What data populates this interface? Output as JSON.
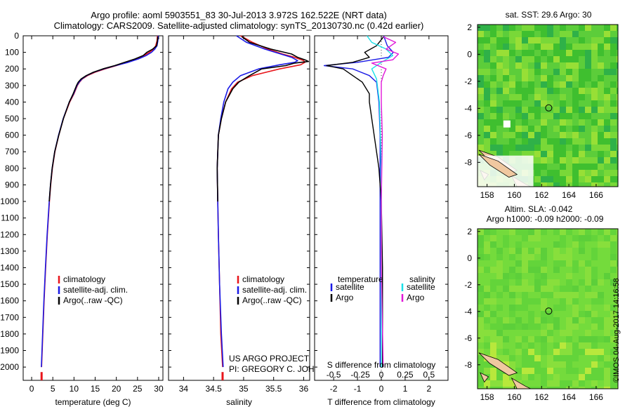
{
  "header": {
    "title_line1": "Argo profile: aoml 5903551_83 30-Jul-2013 3.972S 162.522E (NRT data)",
    "title_line2": "Climatology: CARS2009. Satellite-adjusted climatology: synTS_20130730.nc (0.42d earlier)"
  },
  "colors": {
    "climatology": "#e8151b",
    "satellite": "#1a1ae6",
    "argo": "#000000",
    "sal_satellite": "#18e0e8",
    "sal_argo": "#e018d8"
  },
  "chart_data": [
    {
      "type": "line",
      "name": "temperature",
      "xlabel": "temperature (deg C)",
      "xlim": [
        -2,
        31
      ],
      "xticks": [
        0,
        5,
        10,
        15,
        20,
        25,
        30
      ],
      "ylim": [
        0,
        2080
      ],
      "yticks": [
        0,
        100,
        200,
        300,
        400,
        500,
        600,
        700,
        800,
        900,
        1000,
        1100,
        1200,
        1300,
        1400,
        1500,
        1600,
        1700,
        1800,
        1900,
        2000
      ],
      "legend": [
        "climatology",
        "satellite-adj. clim.",
        "Argo(..raw -QC)"
      ],
      "series": [
        {
          "name": "climatology",
          "depth": [
            0,
            30,
            60,
            80,
            100,
            120,
            140,
            160,
            180,
            200,
            220,
            240,
            260,
            280,
            300,
            350,
            400,
            500,
            600,
            700,
            800,
            900,
            1000,
            1200,
            1400,
            1600,
            1800,
            2000
          ],
          "values": [
            29.7,
            29.6,
            29.3,
            28.8,
            27.8,
            26.5,
            24.8,
            22.5,
            20.0,
            17.3,
            15.0,
            13.2,
            12.0,
            11.3,
            10.8,
            10.0,
            9.0,
            7.5,
            6.4,
            5.5,
            4.9,
            4.5,
            4.2,
            3.7,
            3.3,
            2.95,
            2.65,
            2.35
          ]
        },
        {
          "name": "satellite-adj. clim.",
          "depth": [
            0,
            30,
            60,
            80,
            100,
            120,
            140,
            160,
            180,
            200,
            220,
            240,
            260,
            280,
            300,
            350,
            400,
            500,
            600,
            700,
            800,
            900,
            1000,
            1200,
            1400,
            1600,
            1800,
            2000
          ],
          "values": [
            29.9,
            29.8,
            29.6,
            29.1,
            28.3,
            27.0,
            25.2,
            22.8,
            19.8,
            17.0,
            14.7,
            13.0,
            11.9,
            11.2,
            10.7,
            9.9,
            8.9,
            7.45,
            6.35,
            5.45,
            4.85,
            4.45,
            4.15,
            3.65,
            3.25,
            2.9,
            2.6,
            2.3
          ]
        },
        {
          "name": "Argo(..raw -QC)",
          "depth": [
            5,
            30,
            60,
            80,
            100,
            120,
            140,
            160,
            180,
            200,
            220,
            240,
            260,
            280,
            300,
            350,
            400,
            500,
            600,
            700,
            800,
            900,
            1000
          ],
          "values": [
            29.8,
            29.7,
            29.5,
            28.6,
            27.2,
            26.3,
            24.4,
            22.0,
            19.6,
            16.8,
            14.6,
            12.9,
            11.7,
            11.0,
            10.6,
            9.8,
            8.9,
            7.5,
            6.4,
            5.45,
            4.85,
            4.45,
            4.15
          ]
        }
      ]
    },
    {
      "type": "line",
      "name": "salinity",
      "xlabel": "salinity",
      "xlim": [
        33.75,
        36.1
      ],
      "xticks": [
        34,
        34.5,
        35,
        35.5,
        36
      ],
      "ylim": [
        0,
        2080
      ],
      "legend": [
        "climatology",
        "satellite-adj. clim.",
        "Argo(..raw -QC)"
      ],
      "annotation": [
        "US ARGO PROJECT",
        "PI: GREGORY C. JOHNSON"
      ],
      "series": [
        {
          "name": "climatology",
          "depth": [
            0,
            40,
            80,
            110,
            130,
            150,
            160,
            175,
            200,
            240,
            280,
            320,
            400,
            500,
            600,
            800,
            1000,
            1200,
            1500,
            1800,
            2000
          ],
          "values": [
            34.95,
            35.15,
            35.4,
            35.65,
            35.85,
            36.0,
            36.02,
            35.95,
            35.6,
            35.15,
            34.9,
            34.8,
            34.7,
            34.63,
            34.58,
            34.56,
            34.57,
            34.58,
            34.6,
            34.62,
            34.65
          ]
        },
        {
          "name": "satellite-adj. clim.",
          "depth": [
            0,
            40,
            80,
            110,
            130,
            150,
            160,
            175,
            200,
            240,
            280,
            320,
            400,
            500,
            600,
            800,
            1000,
            1200,
            1500,
            1800,
            2000
          ],
          "values": [
            34.88,
            35.05,
            35.35,
            35.62,
            35.8,
            35.9,
            35.85,
            35.6,
            35.25,
            34.95,
            34.82,
            34.74,
            34.67,
            34.62,
            34.58,
            34.56,
            34.57,
            34.58,
            34.6,
            34.63,
            34.66
          ]
        },
        {
          "name": "Argo(..raw -QC)",
          "depth": [
            5,
            40,
            80,
            110,
            130,
            145,
            155,
            165,
            180,
            200,
            240,
            280,
            320,
            400,
            500,
            600,
            800,
            1000
          ],
          "values": [
            34.97,
            35.1,
            35.45,
            35.8,
            35.9,
            36.02,
            36.08,
            35.85,
            35.7,
            35.3,
            35.1,
            34.92,
            34.82,
            34.7,
            34.63,
            34.58,
            34.56,
            34.57
          ]
        }
      ]
    },
    {
      "type": "line",
      "name": "difference",
      "xlabel": "T difference from climatology",
      "xlabel_top": "S difference from climatology",
      "xlim": [
        -2.8,
        2.8
      ],
      "xticks": [
        -2,
        -1,
        0,
        1,
        2
      ],
      "s_xticks": [
        "-0.5",
        "-0.25",
        "0",
        "0.25",
        "0.5"
      ],
      "ylim": [
        0,
        2080
      ],
      "legend_temperature": [
        "temperature",
        "satellite",
        "Argo"
      ],
      "legend_salinity": [
        "salinity",
        "satellite",
        "Argo"
      ],
      "series": [
        {
          "name": "T satellite",
          "depth": [
            0,
            60,
            100,
            130,
            160,
            180,
            200,
            240,
            280,
            400,
            600,
            800,
            1000,
            1400,
            2000
          ],
          "values": [
            0.1,
            0.25,
            0.5,
            0.3,
            -1.0,
            -2.4,
            -1.2,
            -0.5,
            -0.2,
            -0.1,
            -0.05,
            -0.05,
            -0.05,
            -0.05,
            -0.05
          ]
        },
        {
          "name": "T Argo",
          "depth": [
            5,
            60,
            100,
            130,
            160,
            180,
            200,
            240,
            280,
            350,
            400,
            500,
            600,
            800,
            1000,
            1400,
            2000
          ],
          "values": [
            0.1,
            -0.2,
            -0.7,
            -0.5,
            -1.2,
            -2.3,
            -1.6,
            -1.2,
            -0.8,
            -0.5,
            -0.5,
            -0.4,
            -0.3,
            -0.1,
            0.0,
            0.05,
            0.05
          ]
        },
        {
          "name": "S satellite",
          "depth": [
            0,
            40,
            80,
            120,
            160,
            200,
            260,
            400,
            800,
            1200,
            2000
          ],
          "values": [
            -0.15,
            -0.1,
            0.05,
            0.12,
            0.0,
            -0.1,
            -0.05,
            -0.02,
            0.0,
            0.0,
            0.0
          ]
        },
        {
          "name": "S Argo",
          "depth": [
            5,
            40,
            80,
            110,
            145,
            165,
            200,
            240,
            280,
            400,
            600,
            1000,
            1400,
            2000
          ],
          "values": [
            0.02,
            0.15,
            0.05,
            0.18,
            0.12,
            -0.1,
            0.05,
            0.02,
            0.0,
            0.0,
            0.01,
            0.0,
            0.0,
            0.02
          ]
        }
      ]
    }
  ],
  "maps": [
    {
      "title": "sat. SST: 29.6 Argo: 30",
      "title2": "",
      "xticks": [
        "158",
        "160",
        "162",
        "164",
        "166"
      ],
      "yticks": [
        "2",
        "0",
        "-2",
        "-4",
        "-6",
        "-8"
      ]
    },
    {
      "title": "Altim. SLA: -0.042",
      "title2": "Argo h1000: -0.09 h2000: -0.09",
      "xticks": [
        "158",
        "160",
        "162",
        "164",
        "166"
      ],
      "yticks": [
        "2",
        "0",
        "-2",
        "-4",
        "-6",
        "-8"
      ]
    }
  ],
  "stamp": "©IMOS 04-Aug-2017 14:16:58"
}
